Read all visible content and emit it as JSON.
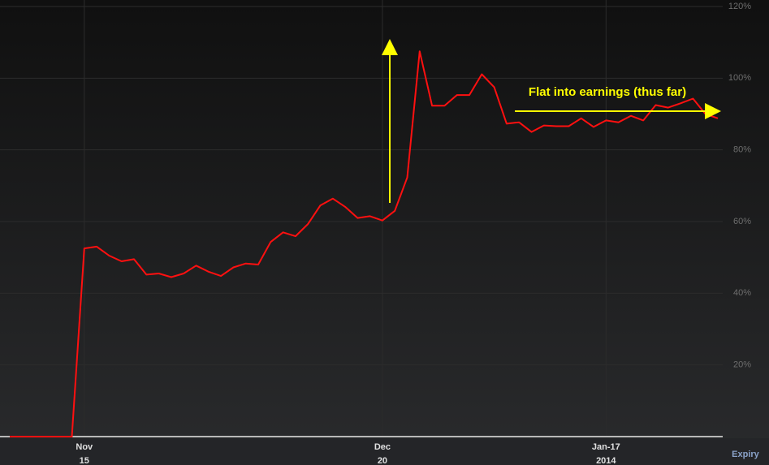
{
  "chart_data": {
    "type": "line",
    "annotation": "Flat into earnings (thus far)",
    "x_label": "Expiry",
    "categories": [
      null,
      null,
      null,
      null,
      null,
      null,
      [
        "Nov",
        "15"
      ],
      null,
      null,
      null,
      null,
      null,
      null,
      null,
      null,
      null,
      null,
      null,
      null,
      null,
      null,
      null,
      null,
      null,
      null,
      null,
      null,
      null,
      null,
      null,
      [
        "Dec",
        "20"
      ],
      null,
      null,
      null,
      null,
      null,
      null,
      null,
      null,
      null,
      null,
      null,
      null,
      null,
      null,
      null,
      null,
      null,
      [
        "Jan-17",
        "2014"
      ],
      null,
      null,
      null,
      null,
      null,
      null,
      null,
      null,
      null
    ],
    "series": [
      {
        "color": "#ff1010",
        "values": [
          0,
          0,
          0,
          0,
          0,
          0,
          52.5,
          53,
          50.5,
          48.9,
          49.5,
          45.2,
          45.5,
          44.5,
          45.5,
          47.7,
          46,
          44.8,
          47.2,
          48.3,
          48,
          54.3,
          57,
          55.9,
          59.3,
          64.5,
          66.4,
          64.1,
          61,
          61.5,
          60.3,
          63,
          72.3,
          107.5,
          92.3,
          92.3,
          95.3,
          95.3,
          101.1,
          97.5,
          87.3,
          87.7,
          85,
          86.8,
          86.6,
          86.6,
          88.8,
          86.4,
          88.2,
          87.7,
          89.5,
          88.2,
          92.5,
          91.8,
          93,
          94.3,
          90,
          88.8
        ]
      }
    ],
    "ylim": [
      0,
      120
    ],
    "yticks": [
      {
        "value": 20,
        "label": "20%"
      },
      {
        "value": 40,
        "label": "40%"
      },
      {
        "value": 60,
        "label": "60%"
      },
      {
        "value": 80,
        "label": "80%"
      },
      {
        "value": 100,
        "label": "100%"
      },
      {
        "value": 120,
        "label": "120%"
      }
    ],
    "grid": true
  }
}
